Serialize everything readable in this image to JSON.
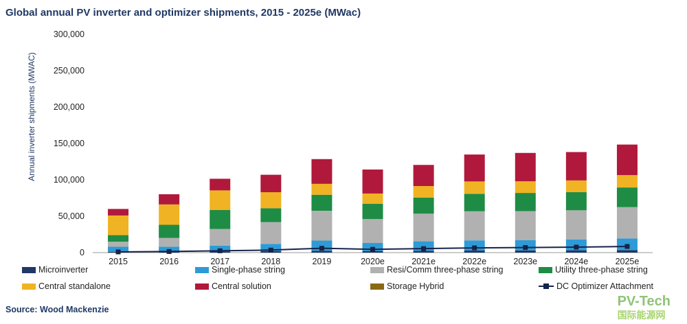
{
  "title": "Global annual PV inverter and optimizer shipments, 2015 - 2025e (MWac)",
  "source": "Source: Wood Mackenzie",
  "watermark": {
    "line1": "PV-Tech",
    "line2": "国际能源网"
  },
  "chart_data": {
    "type": "bar",
    "stacked": true,
    "ylabel": "Annual inverter shipments (MWAC)",
    "ylim": [
      0,
      300000
    ],
    "yticks": [
      "0",
      "50,000",
      "100,000",
      "150,000",
      "200,000",
      "250,000",
      "300,000"
    ],
    "categories": [
      "2015",
      "2016",
      "2017",
      "2018",
      "2019",
      "2020e",
      "2021e",
      "2022e",
      "2023e",
      "2024e",
      "2025e"
    ],
    "series": [
      {
        "name": "Microinverter",
        "color": "#1f3864",
        "values": [
          1000,
          1200,
          1500,
          2000,
          2500,
          2200,
          2500,
          2800,
          3000,
          3200,
          3500
        ]
      },
      {
        "name": "Single-phase string",
        "color": "#2e9bd6",
        "values": [
          7000,
          7000,
          8000,
          10000,
          14000,
          11000,
          13000,
          14000,
          14000,
          15000,
          16000
        ]
      },
      {
        "name": "Resi/Comm three-phase string",
        "color": "#b1b1b1",
        "values": [
          7000,
          12000,
          23000,
          30000,
          41000,
          33000,
          38000,
          40000,
          40000,
          40000,
          43000
        ]
      },
      {
        "name": "Utility three-phase string",
        "color": "#1e8c45",
        "values": [
          9000,
          18000,
          26000,
          19000,
          22000,
          21000,
          22000,
          24000,
          25000,
          25000,
          27000
        ]
      },
      {
        "name": "Central standalone",
        "color": "#f0b323",
        "values": [
          27000,
          28000,
          27000,
          22000,
          15000,
          14000,
          16000,
          17000,
          16000,
          16000,
          17000
        ]
      },
      {
        "name": "Central solution",
        "color": "#b0193b",
        "values": [
          9000,
          14000,
          16000,
          24000,
          34000,
          33000,
          29000,
          37000,
          39000,
          39000,
          42000
        ]
      },
      {
        "name": "Storage Hybrid",
        "color": "#8b6914",
        "values": [
          0,
          0,
          0,
          0,
          0,
          0,
          0,
          0,
          0,
          0,
          0
        ]
      }
    ],
    "line_series": {
      "name": "DC Optimizer Attachment",
      "color": "#16234a",
      "values": [
        1000,
        1500,
        2500,
        3500,
        6000,
        4500,
        5500,
        6500,
        7000,
        7500,
        8500
      ]
    },
    "legend": [
      {
        "name": "Microinverter",
        "kind": "bar",
        "color": "#1f3864"
      },
      {
        "name": "Single-phase string",
        "kind": "bar",
        "color": "#2e9bd6"
      },
      {
        "name": "Resi/Comm three-phase string",
        "kind": "bar",
        "color": "#b1b1b1"
      },
      {
        "name": "Utility three-phase string",
        "kind": "bar",
        "color": "#1e8c45"
      },
      {
        "name": "Central standalone",
        "kind": "bar",
        "color": "#f0b323"
      },
      {
        "name": "Central solution",
        "kind": "bar",
        "color": "#b0193b"
      },
      {
        "name": "Storage Hybrid",
        "kind": "bar",
        "color": "#8b6914"
      },
      {
        "name": "DC Optimizer Attachment",
        "kind": "line",
        "color": "#16234a"
      }
    ],
    "legend_placement": "bottom",
    "grid": false
  }
}
